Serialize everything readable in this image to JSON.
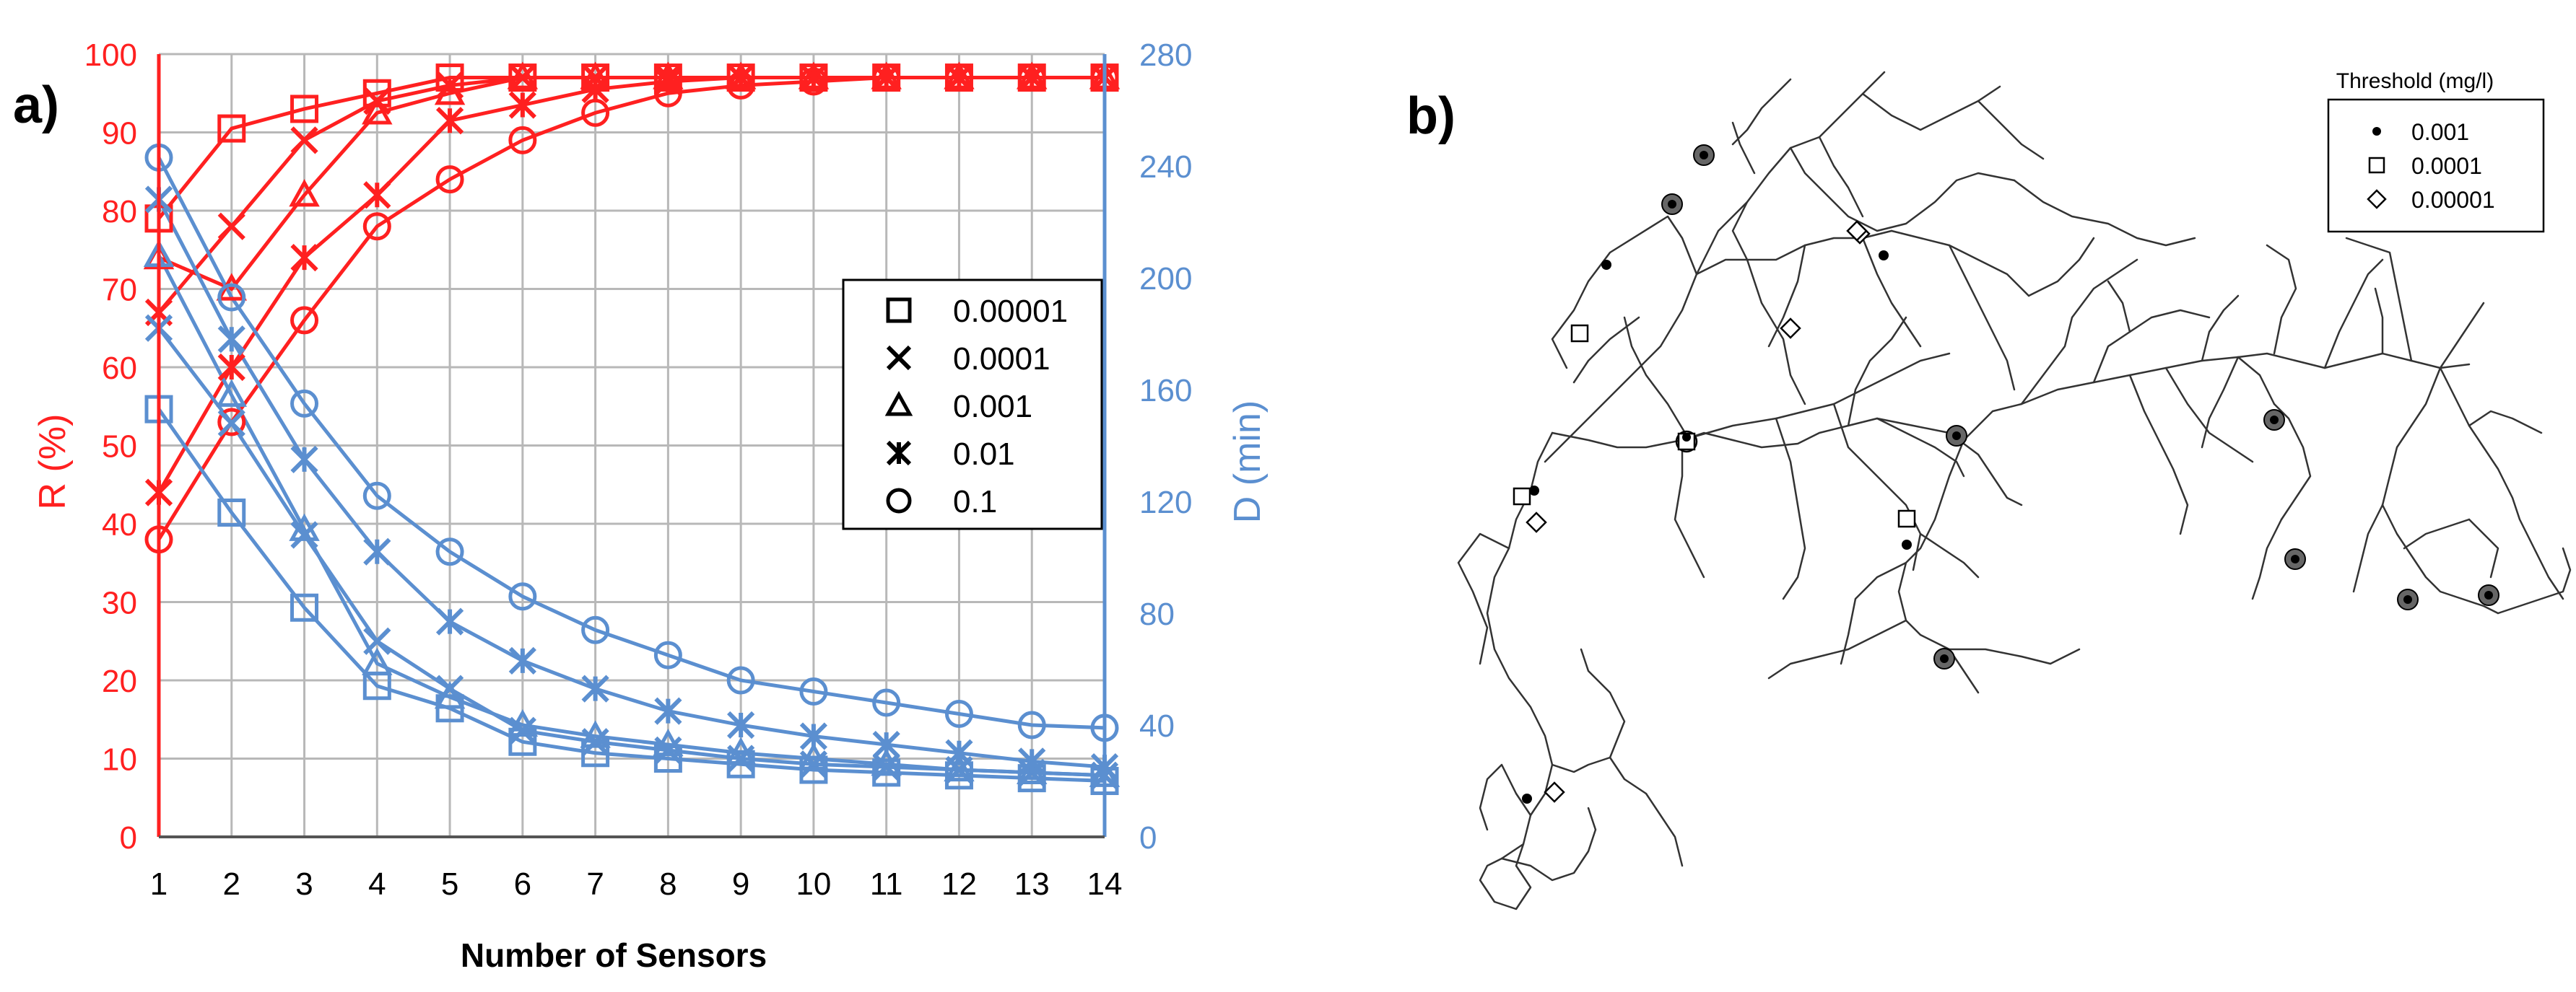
{
  "panel_a": {
    "label": "a)",
    "chart_data": {
      "type": "line",
      "x": [
        1,
        2,
        3,
        4,
        5,
        6,
        7,
        8,
        9,
        10,
        11,
        12,
        13,
        14
      ],
      "xlabel": "Number of Sensors",
      "xticks": [
        "1",
        "2",
        "3",
        "4",
        "5",
        "6",
        "7",
        "8",
        "9",
        "10",
        "11",
        "12",
        "13",
        "14"
      ],
      "left_axis": {
        "label": "R (%)",
        "range": [
          0,
          100
        ],
        "ticks": [
          "0",
          "10",
          "20",
          "30",
          "40",
          "50",
          "60",
          "70",
          "80",
          "90",
          "100"
        ],
        "color": "#ff2020"
      },
      "right_axis": {
        "label": "D (min)",
        "range": [
          0,
          280
        ],
        "ticks": [
          "0",
          "40",
          "80",
          "120",
          "160",
          "200",
          "240",
          "280"
        ],
        "color": "#5b8fd0"
      },
      "grid": true,
      "legend_position": "right-middle",
      "legend": [
        {
          "name": "0.00001",
          "marker": "square"
        },
        {
          "name": "0.0001",
          "marker": "x"
        },
        {
          "name": "0.001",
          "marker": "triangle"
        },
        {
          "name": "0.01",
          "marker": "star"
        },
        {
          "name": "0.1",
          "marker": "circle"
        }
      ],
      "series": [
        {
          "name": "0.00001",
          "axis": "R",
          "marker": "square",
          "color": "#ff2020",
          "values": [
            79,
            90.5,
            93,
            95,
            97,
            97,
            97,
            97,
            97,
            97,
            97,
            97,
            97,
            97
          ]
        },
        {
          "name": "0.0001",
          "axis": "R",
          "marker": "x",
          "color": "#ff2020",
          "values": [
            67,
            78,
            89,
            94,
            96,
            97,
            97,
            97,
            97,
            97,
            97,
            97,
            97,
            97
          ]
        },
        {
          "name": "0.001",
          "axis": "R",
          "marker": "triangle",
          "color": "#ff2020",
          "values": [
            74,
            70,
            82,
            92.5,
            95,
            97,
            97,
            97,
            97,
            97,
            97,
            97,
            97,
            97
          ]
        },
        {
          "name": "0.01",
          "axis": "R",
          "marker": "star",
          "color": "#ff2020",
          "values": [
            44,
            60,
            74,
            82,
            91.5,
            93.5,
            95.5,
            96.5,
            97,
            97,
            97,
            97,
            97,
            97
          ]
        },
        {
          "name": "0.1",
          "axis": "R",
          "marker": "circle",
          "color": "#ff2020",
          "values": [
            38,
            53,
            66,
            78,
            84,
            89,
            92.5,
            95,
            96,
            96.5,
            97,
            97,
            97,
            97
          ]
        },
        {
          "name": "0.00001",
          "axis": "D",
          "marker": "square",
          "color": "#5b8fd0",
          "values": [
            153,
            116,
            82,
            54,
            46,
            34,
            30,
            28,
            26,
            24,
            23,
            22,
            21,
            20
          ]
        },
        {
          "name": "0.0001",
          "axis": "D",
          "marker": "x",
          "color": "#5b8fd0",
          "values": [
            182,
            148,
            108,
            70,
            53,
            38,
            34,
            31,
            28,
            26,
            25,
            24,
            23,
            22
          ]
        },
        {
          "name": "0.001",
          "axis": "D",
          "marker": "triangle",
          "color": "#5b8fd0",
          "values": [
            208,
            158,
            110,
            62,
            50,
            40,
            36,
            33,
            30,
            28,
            26,
            24,
            23,
            22
          ]
        },
        {
          "name": "0.01",
          "axis": "D",
          "marker": "star",
          "color": "#5b8fd0",
          "values": [
            228,
            178,
            135,
            102,
            77,
            63,
            53,
            45,
            40,
            36,
            33,
            30,
            27,
            25
          ]
        },
        {
          "name": "0.1",
          "axis": "D",
          "marker": "circle",
          "color": "#5b8fd0",
          "values": [
            243,
            193,
            155,
            122,
            102,
            86,
            74,
            65,
            56,
            52,
            48,
            44,
            40,
            39
          ]
        }
      ]
    }
  },
  "panel_b": {
    "label": "b)",
    "legend_title": "Threshold (mg/l)",
    "legend": [
      {
        "name": "0.001",
        "marker": "dot"
      },
      {
        "name": "0.0001",
        "marker": "square"
      },
      {
        "name": "0.00001",
        "marker": "diamond"
      }
    ]
  }
}
